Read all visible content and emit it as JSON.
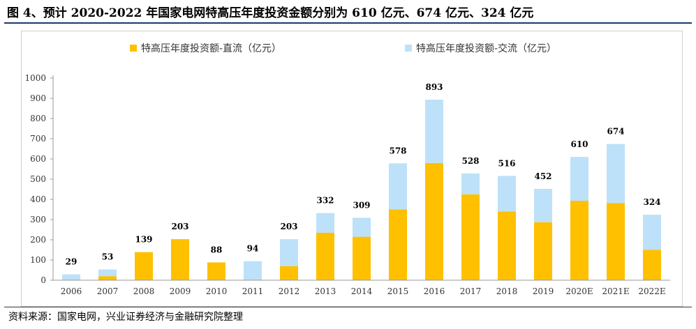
{
  "header": {
    "title": "图 4、预计 2020-2022 年国家电网特高压年度投资金额分别为 610 亿元、674 亿元、324 亿元"
  },
  "footer": {
    "source": "资料来源：国家电网，兴业证券经济与金融研究院整理"
  },
  "colors": {
    "dc": "#ffc000",
    "ac": "#bde1f8",
    "axis": "#999999",
    "rule": "#1a3a6b"
  },
  "chart_data": {
    "type": "bar",
    "stacked": true,
    "title": "",
    "xlabel": "",
    "ylabel": "",
    "ylim": [
      0,
      1000
    ],
    "yticks": [
      0,
      100,
      200,
      300,
      400,
      500,
      600,
      700,
      800,
      900,
      1000
    ],
    "legend_position": "top",
    "grid": false,
    "categories": [
      "2006",
      "2007",
      "2008",
      "2009",
      "2010",
      "2011",
      "2012",
      "2013",
      "2014",
      "2015",
      "2016",
      "2017",
      "2018",
      "2019",
      "2020E",
      "2021E",
      "2022E"
    ],
    "series": [
      {
        "name": "特高压年度投资额-直流（亿元）",
        "color": "#ffc000",
        "values": [
          0,
          20,
          139,
          203,
          88,
          0,
          70,
          235,
          215,
          350,
          580,
          425,
          340,
          287,
          393,
          382,
          150
        ]
      },
      {
        "name": "特高压年度投资额-交流（亿元）",
        "color": "#bde1f8",
        "values": [
          29,
          33,
          0,
          0,
          0,
          94,
          133,
          97,
          94,
          228,
          313,
          103,
          176,
          165,
          217,
          292,
          174
        ]
      }
    ],
    "totals": [
      29,
      53,
      139,
      203,
      88,
      94,
      203,
      332,
      309,
      578,
      893,
      528,
      516,
      452,
      610,
      674,
      324
    ]
  }
}
